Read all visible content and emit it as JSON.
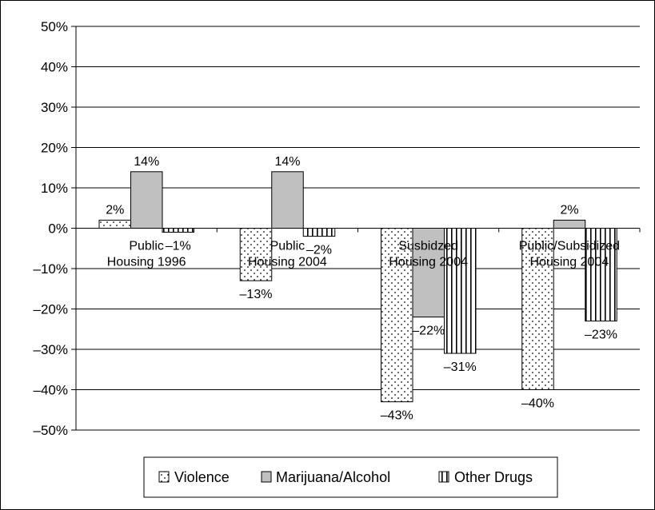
{
  "chart_data": {
    "type": "bar",
    "categories": [
      "Public Housing 1996",
      "Public Housing 2004",
      "Susbidzed Housing 2004",
      "Public/Subsidized Housing 2004"
    ],
    "category_lines": [
      [
        "Public",
        "Housing 1996"
      ],
      [
        "Public",
        "Housing 2004"
      ],
      [
        "Susbidzed",
        "Housing 2004"
      ],
      [
        "Public/Subsidized",
        "Housing 2004"
      ]
    ],
    "series": [
      {
        "name": "Violence",
        "values": [
          2,
          -13,
          -43,
          -40
        ],
        "labels": [
          "2%",
          "–13%",
          "–43%",
          "–40%"
        ],
        "pattern": "dots"
      },
      {
        "name": "Marijuana/Alcohol",
        "values": [
          14,
          14,
          -22,
          2
        ],
        "labels": [
          "14%",
          "14%",
          "–22%",
          "2%"
        ],
        "pattern": "gray"
      },
      {
        "name": "Other Drugs",
        "values": [
          -1,
          -2,
          -31,
          -23
        ],
        "labels": [
          "–1%",
          "–2%",
          "–31%",
          "–23%"
        ],
        "pattern": "vlines"
      }
    ],
    "ylim": [
      -50,
      50
    ],
    "yticks": [
      50,
      40,
      30,
      20,
      10,
      0,
      -10,
      -20,
      -30,
      -40,
      -50
    ],
    "ytick_labels": [
      "50%",
      "40%",
      "30%",
      "20%",
      "10%",
      "0%",
      "–10%",
      "–20%",
      "–30%",
      "–40%",
      "–50%"
    ],
    "grid": true,
    "legend": "bottom",
    "colors": {
      "bar_gray": "#c0c0c0",
      "grid": "#000000"
    }
  }
}
